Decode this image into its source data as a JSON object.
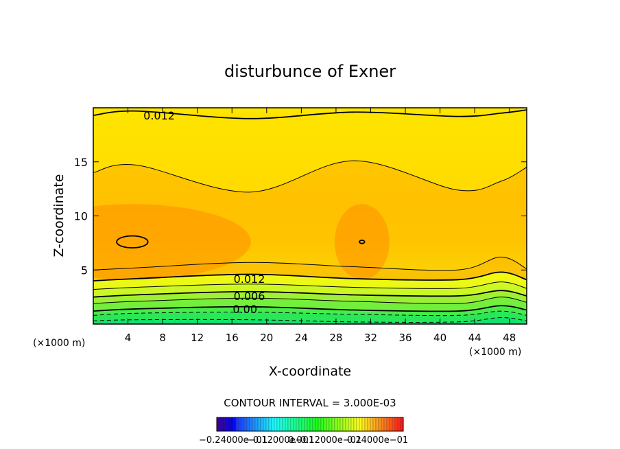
{
  "chart_data": {
    "type": "contour",
    "title": "disturbunce of Exner",
    "xlabel": "X-coordinate",
    "ylabel": "Z-coordinate",
    "x_unit": "(×1000 m)",
    "x_unit_right": "(×1000 m)",
    "xlim": [
      0,
      50
    ],
    "ylim": [
      0,
      20
    ],
    "x_ticks": [
      4,
      8,
      12,
      16,
      20,
      24,
      28,
      32,
      36,
      40,
      44,
      48
    ],
    "y_ticks": [
      5,
      10,
      15
    ],
    "contour_interval_text": "CONTOUR INTERVAL = 3.000E-03",
    "contour_interval": 0.003,
    "contour_labels": [
      {
        "text": "0.012",
        "x": 7.6,
        "z": 19.3
      },
      {
        "text": "0.012",
        "x": 18.0,
        "z": 4.2
      },
      {
        "text": "0.006",
        "x": 18.0,
        "z": 2.6
      },
      {
        "text": "0.00",
        "x": 17.5,
        "z": 1.4
      }
    ],
    "contour_levels": [
      {
        "z": [
          0.3,
          0.4,
          0.4,
          0.2,
          0.2,
          0.6,
          0.3
        ],
        "dashed": true,
        "bold": false
      },
      {
        "z": [
          0.8,
          1.0,
          1.1,
          0.9,
          0.8,
          1.2,
          0.8
        ],
        "dashed": true,
        "bold": false
      },
      {
        "z": [
          1.2,
          1.4,
          1.6,
          1.3,
          1.2,
          1.7,
          1.3
        ],
        "dashed": false,
        "bold": true
      },
      {
        "z": [
          1.9,
          2.1,
          2.4,
          2.1,
          1.9,
          2.5,
          2.0
        ],
        "dashed": false,
        "bold": false
      },
      {
        "z": [
          2.5,
          2.7,
          3.0,
          2.7,
          2.6,
          3.1,
          2.6
        ],
        "dashed": false,
        "bold": true
      },
      {
        "z": [
          3.2,
          3.4,
          3.7,
          3.4,
          3.3,
          3.9,
          3.3
        ],
        "dashed": false,
        "bold": false
      },
      {
        "z": [
          4.0,
          4.2,
          4.6,
          4.2,
          4.1,
          4.8,
          4.1
        ],
        "dashed": false,
        "bold": true
      },
      {
        "z": [
          5.0,
          5.2,
          5.7,
          5.3,
          5.0,
          6.2,
          5.1
        ],
        "dashed": false,
        "bold": false
      },
      {
        "z": [
          14.0,
          14.7,
          12.2,
          15.1,
          12.4,
          13.2,
          14.5
        ],
        "dashed": false,
        "bold": false
      },
      {
        "z": [
          19.3,
          19.7,
          19.0,
          19.6,
          19.2,
          19.5,
          19.8
        ],
        "dashed": false,
        "bold": true
      }
    ],
    "contour_x": [
      0,
      5,
      18,
      30,
      42,
      47,
      50
    ],
    "max_regions": [
      {
        "x": 4.5,
        "z": 7.6,
        "rx": 1.8,
        "rz": 0.55
      },
      {
        "x": 31.0,
        "z": 7.6,
        "rx": 0.3,
        "rz": 0.15
      }
    ],
    "colorbar_label": "−0.24000e−01",
    "colorbar_label_2": "−0.12000e−01",
    "colorbar_label_3": "0.0",
    "colorbar_label_4": "0.12000e−01",
    "colorbar_label_5": "0.24000e−01",
    "colors": {
      "band_low": "#22e060",
      "band_mid": "#f2ff00",
      "band_high": "#ff8800",
      "top": "#ffe000"
    }
  }
}
